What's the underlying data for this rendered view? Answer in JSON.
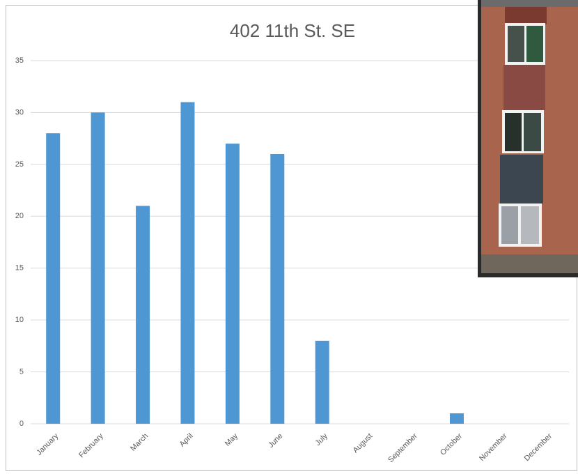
{
  "chart_data": {
    "type": "bar",
    "title": "402 11th St. SE",
    "categories": [
      "January",
      "February",
      "March",
      "April",
      "May",
      "June",
      "July",
      "August",
      "September",
      "October",
      "November",
      "December"
    ],
    "values": [
      28,
      30,
      21,
      31,
      27,
      26,
      8,
      0,
      0,
      1,
      0,
      0
    ],
    "color": "#4f97d3",
    "ylim": [
      0,
      35
    ],
    "yticks": [
      0,
      5,
      10,
      15,
      20,
      25,
      30,
      35
    ],
    "grid": true
  }
}
